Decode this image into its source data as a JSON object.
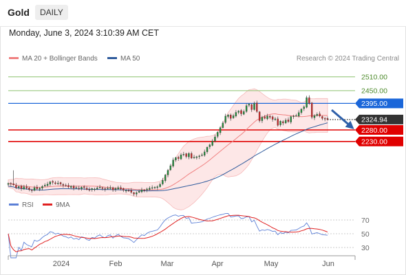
{
  "header": {
    "instrument": "Gold",
    "timeframe": "DAILY",
    "datetime": "Monday, June 3, 2024 3:10:39 AM CET"
  },
  "legend": {
    "ma20": {
      "label": "MA 20 + Bollinger Bands",
      "color": "#f08080"
    },
    "ma50": {
      "label": "MA 50",
      "color": "#2e5a9c"
    },
    "credit": "Research © 2024 Trading Central"
  },
  "rsi_legend": {
    "rsi": {
      "label": "RSI",
      "color": "#5b7fd6"
    },
    "ma9": {
      "label": "9MA",
      "color": "#e02020"
    }
  },
  "chart_data": {
    "type": "candlestick",
    "x_ticks": [
      "2024",
      "Feb",
      "Mar",
      "Apr",
      "May",
      "Jun"
    ],
    "price_range": [
      2000,
      2560
    ],
    "levels": [
      {
        "label": "2510.00",
        "value": 2510,
        "kind": "resistance",
        "color": "#8cc26e"
      },
      {
        "label": "2450.00",
        "value": 2450,
        "kind": "resistance",
        "color": "#8cc26e"
      },
      {
        "label": "2395.00",
        "value": 2395,
        "kind": "pivot",
        "color": "#1a66d9"
      },
      {
        "label": "2324.94",
        "value": 2324.94,
        "kind": "last",
        "color": "#333333"
      },
      {
        "label": "2280.00",
        "value": 2280,
        "kind": "support",
        "color": "#e00000"
      },
      {
        "label": "2230.00",
        "value": 2230,
        "kind": "support",
        "color": "#e00000"
      }
    ],
    "closes": [
      2048,
      2045,
      2042,
      2030,
      2035,
      2026,
      2034,
      2027,
      2022,
      2018,
      2030,
      2025,
      2028,
      2035,
      2041,
      2045,
      2055,
      2053,
      2047,
      2050,
      2046,
      2040,
      2038,
      2033,
      2036,
      2028,
      2030,
      2025,
      2032,
      2030,
      2022,
      2019,
      2026,
      2024,
      2029,
      2032,
      2026,
      2023,
      2028,
      2030,
      2020,
      2026,
      2030,
      2024,
      2019,
      2018,
      2016,
      2010,
      2002,
      2008,
      2014,
      2020,
      2018,
      2024,
      2028,
      2030,
      2032,
      2034,
      2044,
      2062,
      2085,
      2105,
      2125,
      2150,
      2160,
      2156,
      2172,
      2175,
      2165,
      2178,
      2158,
      2162,
      2164,
      2167,
      2172,
      2185,
      2205,
      2215,
      2232,
      2250,
      2270,
      2290,
      2310,
      2340,
      2345,
      2330,
      2342,
      2356,
      2362,
      2350,
      2360,
      2385,
      2392,
      2368,
      2395,
      2360,
      2320,
      2335,
      2330,
      2340,
      2335,
      2326,
      2328,
      2300,
      2318,
      2310,
      2322,
      2316,
      2338,
      2340,
      2342,
      2355,
      2370,
      2380,
      2420,
      2395,
      2335,
      2342,
      2348,
      2340,
      2330,
      2328,
      2324.94
    ],
    "rsi_range": [
      20,
      80
    ],
    "rsi_levels": [
      70,
      50,
      30
    ]
  }
}
